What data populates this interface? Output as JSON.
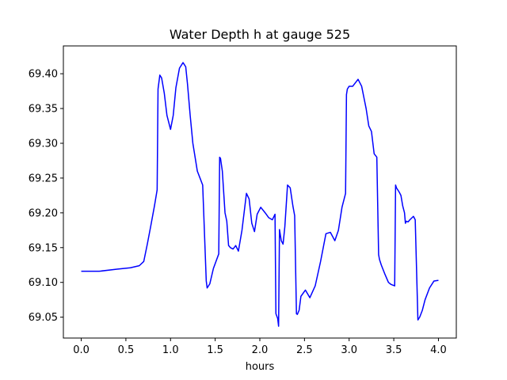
{
  "chart_data": {
    "type": "line",
    "title": "Water Depth h at gauge 525",
    "xlabel": "hours",
    "ylabel": "",
    "xlim": [
      -0.2,
      4.2
    ],
    "ylim": [
      69.02,
      69.44
    ],
    "xticks": [
      0.0,
      0.5,
      1.0,
      1.5,
      2.0,
      2.5,
      3.0,
      3.5,
      4.0
    ],
    "xtick_labels": [
      "0.0",
      "0.5",
      "1.0",
      "1.5",
      "2.0",
      "2.5",
      "3.0",
      "3.5",
      "4.0"
    ],
    "yticks": [
      69.05,
      69.1,
      69.15,
      69.2,
      69.25,
      69.3,
      69.35,
      69.4
    ],
    "ytick_labels": [
      "69.05",
      "69.10",
      "69.15",
      "69.20",
      "69.25",
      "69.30",
      "69.35",
      "69.40"
    ],
    "grid": false,
    "series": [
      {
        "color": "#0000ff",
        "x": [
          0.0,
          0.2,
          0.4,
          0.55,
          0.65,
          0.7,
          0.74,
          0.78,
          0.82,
          0.85,
          0.86,
          0.88,
          0.9,
          0.93,
          0.96,
          1.0,
          1.03,
          1.06,
          1.1,
          1.14,
          1.17,
          1.19,
          1.22,
          1.25,
          1.3,
          1.36,
          1.4,
          1.41,
          1.44,
          1.48,
          1.54,
          1.55,
          1.56,
          1.58,
          1.61,
          1.63,
          1.65,
          1.67,
          1.7,
          1.73,
          1.76,
          1.8,
          1.85,
          1.88,
          1.91,
          1.94,
          1.97,
          2.01,
          2.06,
          2.1,
          2.14,
          2.17,
          2.18,
          2.2,
          2.21,
          2.22,
          2.24,
          2.26,
          2.28,
          2.31,
          2.34,
          2.37,
          2.39,
          2.41,
          2.42,
          2.44,
          2.46,
          2.51,
          2.56,
          2.62,
          2.68,
          2.74,
          2.79,
          2.84,
          2.88,
          2.92,
          2.96,
          2.97,
          2.98,
          3.0,
          3.04,
          3.1,
          3.14,
          3.19,
          3.22,
          3.25,
          3.28,
          3.31,
          3.33,
          3.34,
          3.36,
          3.4,
          3.44,
          3.47,
          3.51,
          3.52,
          3.53,
          3.56,
          3.58,
          3.6,
          3.62,
          3.63,
          3.64,
          3.66,
          3.68,
          3.72,
          3.74,
          3.77,
          3.78,
          3.79,
          3.82,
          3.85,
          3.9,
          3.95,
          4.0
        ],
        "y": [
          69.116,
          69.116,
          69.119,
          69.121,
          69.124,
          69.13,
          69.155,
          69.182,
          69.21,
          69.233,
          69.378,
          69.398,
          69.394,
          69.372,
          69.34,
          69.32,
          69.34,
          69.38,
          69.408,
          69.416,
          69.41,
          69.385,
          69.34,
          69.3,
          69.26,
          69.24,
          69.102,
          69.092,
          69.098,
          69.12,
          69.141,
          69.28,
          69.278,
          69.26,
          69.2,
          69.188,
          69.153,
          69.15,
          69.148,
          69.153,
          69.145,
          69.175,
          69.228,
          69.22,
          69.185,
          69.173,
          69.198,
          69.208,
          69.2,
          69.193,
          69.19,
          69.198,
          69.055,
          69.048,
          69.037,
          69.176,
          69.16,
          69.155,
          69.18,
          69.24,
          69.236,
          69.21,
          69.196,
          69.055,
          69.054,
          69.06,
          69.08,
          69.089,
          69.078,
          69.095,
          69.13,
          69.17,
          69.172,
          69.16,
          69.175,
          69.208,
          69.228,
          69.37,
          69.378,
          69.382,
          69.382,
          69.392,
          69.382,
          69.35,
          69.325,
          69.317,
          69.285,
          69.28,
          69.14,
          69.133,
          69.125,
          69.112,
          69.1,
          69.097,
          69.095,
          69.24,
          69.236,
          69.23,
          69.225,
          69.21,
          69.2,
          69.185,
          69.188,
          69.187,
          69.19,
          69.195,
          69.19,
          69.046,
          69.048,
          69.05,
          69.06,
          69.075,
          69.092,
          69.102,
          69.103
        ]
      }
    ]
  }
}
